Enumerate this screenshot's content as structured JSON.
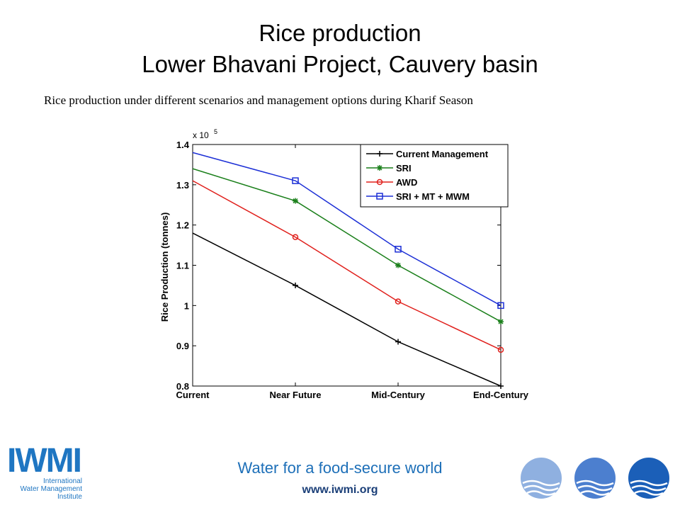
{
  "slide": {
    "title_line1": "Rice production",
    "title_line2": "Lower Bhavani Project, Cauvery basin",
    "subtitle": "Rice production under different scenarios and management  options during Kharif Season"
  },
  "footer": {
    "tagline": "Water for a food-secure world",
    "website": "www.iwmi.org",
    "logo_mark": "IWMI",
    "logo_line1": "International",
    "logo_line2": "Water Management",
    "logo_line3": "Institute"
  },
  "colors": {
    "footer_blue": "#1d6fb8",
    "circle_1": "#8fb0e0",
    "circle_2": "#4c7fcf",
    "circle_3": "#1b5fb8"
  },
  "chart_data": {
    "type": "line",
    "categories": [
      "Current",
      "Near Future",
      "Mid-Century",
      "End-Century"
    ],
    "ylabel": "Rice Production (tonnes)",
    "y_multiplier_label": "x 10",
    "y_multiplier_exp": "5",
    "ylim": [
      0.8,
      1.4
    ],
    "yticks": [
      0.8,
      0.9,
      1,
      1.1,
      1.2,
      1.3,
      1.4
    ],
    "ytick_labels": [
      "0.8",
      "0.9",
      "1",
      "1.1",
      "1.2",
      "1.3",
      "1.4"
    ],
    "legend_position": "top-right",
    "series": [
      {
        "name": "Current Management",
        "values": [
          1.18,
          1.05,
          0.91,
          0.8
        ],
        "color": "#000000",
        "marker": "plus"
      },
      {
        "name": "SRI",
        "values": [
          1.34,
          1.26,
          1.1,
          0.96
        ],
        "color": "#1a7f1a",
        "marker": "star"
      },
      {
        "name": "AWD",
        "values": [
          1.31,
          1.17,
          1.01,
          0.89
        ],
        "color": "#e0201c",
        "marker": "circle"
      },
      {
        "name": "SRI + MT + MWM",
        "values": [
          1.38,
          1.31,
          1.14,
          1.0
        ],
        "color": "#1c2fd6",
        "marker": "square"
      }
    ],
    "marker_indices": [
      1,
      2,
      3
    ]
  }
}
